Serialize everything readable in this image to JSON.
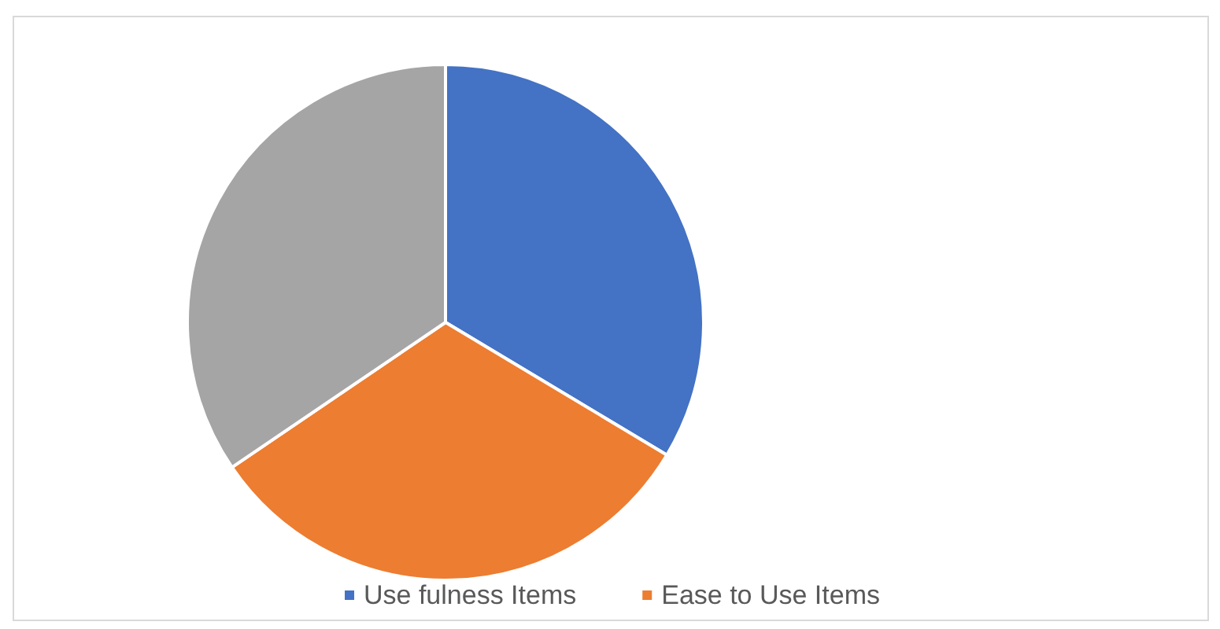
{
  "chart_data": {
    "type": "pie",
    "categories": [
      "Use fulness Items",
      "Ease to Use Items",
      null
    ],
    "values": [
      33.6,
      31.9,
      34.5
    ],
    "colors": [
      "#4472c4",
      "#ed7d31",
      "#a5a5a5"
    ],
    "legend": "bottom"
  }
}
